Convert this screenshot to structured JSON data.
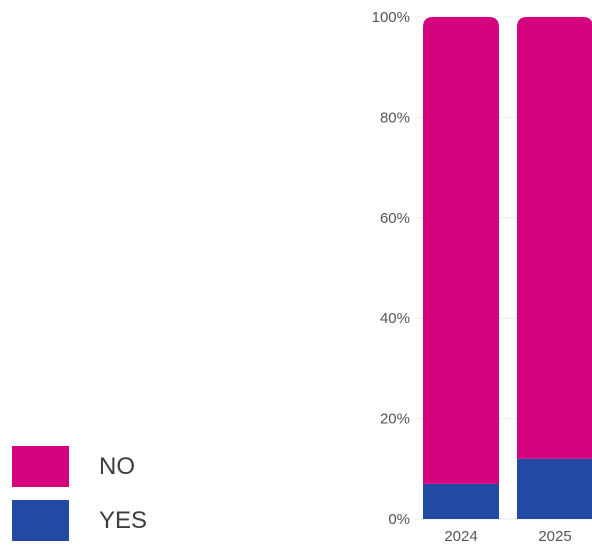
{
  "chart_data": {
    "type": "bar",
    "stacked": true,
    "categories": [
      "2024",
      "2025"
    ],
    "series": [
      {
        "name": "YES",
        "color": "#234aa3",
        "values": [
          7,
          12
        ]
      },
      {
        "name": "NO",
        "color": "#d4037e",
        "values": [
          93,
          88
        ]
      }
    ],
    "y_ticks": [
      "0%",
      "20%",
      "40%",
      "60%",
      "80%",
      "100%"
    ],
    "ylim": [
      0,
      100
    ],
    "grid": true,
    "legend_position": "bottom-left",
    "title": "",
    "xlabel": "",
    "ylabel": ""
  },
  "legend": {
    "items": [
      {
        "label": "NO",
        "color": "#d4037e"
      },
      {
        "label": "YES",
        "color": "#234aa3"
      }
    ]
  }
}
